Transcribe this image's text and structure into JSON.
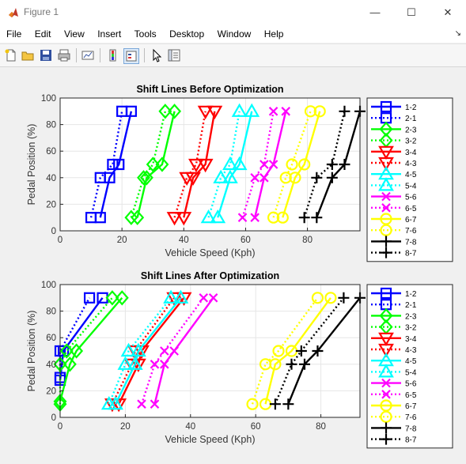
{
  "window": {
    "title": "Figure 1",
    "controls": [
      "—",
      "☐",
      "✕"
    ]
  },
  "menu": {
    "items": [
      "File",
      "Edit",
      "View",
      "Insert",
      "Tools",
      "Desktop",
      "Window",
      "Help"
    ],
    "dock_arrow": "↘"
  },
  "toolbar": {
    "buttons": [
      "new-figure",
      "open-file",
      "save",
      "print",
      "link-plot",
      "colorbar",
      "legend",
      "pointer",
      "property-inspector"
    ]
  },
  "chart_data": [
    {
      "type": "line",
      "title": "Shift Lines Before Optimization",
      "xlabel": "Vehicle Speed (Kph)",
      "ylabel": "Pedal Position (%)",
      "xlim": [
        0,
        97
      ],
      "ylim": [
        0,
        100
      ],
      "xticks": [
        0,
        20,
        40,
        60,
        80
      ],
      "yticks": [
        0,
        20,
        40,
        60,
        80,
        100
      ],
      "grid": true,
      "legend_position": "outside-right",
      "series": [
        {
          "name": "1-2",
          "color": "#0000ff",
          "style": "solid",
          "marker": "square",
          "x": [
            13,
            16,
            19,
            23
          ],
          "y": [
            10,
            40,
            50,
            90
          ]
        },
        {
          "name": "2-1",
          "color": "#0000ff",
          "style": "dotted",
          "marker": "square",
          "x": [
            10,
            13,
            17,
            20
          ],
          "y": [
            10,
            40,
            50,
            90
          ]
        },
        {
          "name": "2-3",
          "color": "#00ff00",
          "style": "solid",
          "marker": "diamond",
          "x": [
            25,
            28,
            33,
            37
          ],
          "y": [
            10,
            40,
            50,
            90
          ]
        },
        {
          "name": "3-2",
          "color": "#00ff00",
          "style": "dotted",
          "marker": "diamond",
          "x": [
            23,
            27,
            30,
            34
          ],
          "y": [
            10,
            40,
            50,
            90
          ]
        },
        {
          "name": "3-4",
          "color": "#ff0000",
          "style": "solid",
          "marker": "triangle-down",
          "x": [
            40,
            43,
            47,
            50
          ],
          "y": [
            10,
            40,
            50,
            90
          ]
        },
        {
          "name": "4-3",
          "color": "#ff0000",
          "style": "dotted",
          "marker": "triangle-down",
          "x": [
            37,
            41,
            44,
            47
          ],
          "y": [
            10,
            40,
            50,
            90
          ]
        },
        {
          "name": "4-5",
          "color": "#00ffff",
          "style": "solid",
          "marker": "triangle-up",
          "x": [
            51,
            55,
            58,
            62
          ],
          "y": [
            10,
            40,
            50,
            90
          ]
        },
        {
          "name": "5-4",
          "color": "#00ffff",
          "style": "dotted",
          "marker": "triangle-up",
          "x": [
            48,
            52,
            55,
            58
          ],
          "y": [
            10,
            40,
            50,
            90
          ]
        },
        {
          "name": "5-6",
          "color": "#ff00ff",
          "style": "solid",
          "marker": "x",
          "x": [
            63,
            66,
            69,
            73
          ],
          "y": [
            10,
            40,
            50,
            90
          ]
        },
        {
          "name": "6-5",
          "color": "#ff00ff",
          "style": "dotted",
          "marker": "x",
          "x": [
            59,
            63,
            66,
            69
          ],
          "y": [
            10,
            40,
            50,
            90
          ]
        },
        {
          "name": "6-7",
          "color": "#ffff00",
          "style": "solid",
          "marker": "circle",
          "x": [
            72,
            76,
            79,
            84
          ],
          "y": [
            10,
            40,
            50,
            90
          ]
        },
        {
          "name": "7-6",
          "color": "#ffff00",
          "style": "dotted",
          "marker": "circle",
          "x": [
            69,
            73,
            75,
            81
          ],
          "y": [
            10,
            40,
            50,
            90
          ]
        },
        {
          "name": "7-8",
          "color": "#000000",
          "style": "solid",
          "marker": "plus",
          "x": [
            83,
            88,
            92,
            97
          ],
          "y": [
            10,
            40,
            50,
            90
          ]
        },
        {
          "name": "8-7",
          "color": "#000000",
          "style": "dotted",
          "marker": "plus",
          "x": [
            79,
            83,
            88,
            92
          ],
          "y": [
            10,
            40,
            50,
            90
          ]
        }
      ]
    },
    {
      "type": "line",
      "title": "Shift Lines After Optimization",
      "xlabel": "Vehicle Speed (Kph)",
      "ylabel": "Pedal Position (%)",
      "xlim": [
        0,
        92
      ],
      "ylim": [
        0,
        100
      ],
      "xticks": [
        0,
        20,
        40,
        60,
        80
      ],
      "yticks": [
        0,
        20,
        40,
        60,
        80,
        100
      ],
      "grid": true,
      "legend_position": "outside-right",
      "series": [
        {
          "name": "1-2",
          "color": "#0000ff",
          "style": "solid",
          "marker": "square",
          "x": [
            0,
            1,
            13
          ],
          "y": [
            28,
            50,
            90
          ]
        },
        {
          "name": "2-1",
          "color": "#0000ff",
          "style": "dotted",
          "marker": "square",
          "x": [
            0,
            0,
            9
          ],
          "y": [
            30,
            50,
            90
          ]
        },
        {
          "name": "2-3",
          "color": "#00ff00",
          "style": "solid",
          "marker": "diamond",
          "x": [
            0,
            3,
            5,
            19
          ],
          "y": [
            12,
            40,
            50,
            90
          ]
        },
        {
          "name": "3-2",
          "color": "#00ff00",
          "style": "dotted",
          "marker": "diamond",
          "x": [
            0,
            0,
            2,
            16
          ],
          "y": [
            10,
            40,
            50,
            90
          ]
        },
        {
          "name": "3-4",
          "color": "#ff0000",
          "style": "solid",
          "marker": "triangle-down",
          "x": [
            18,
            24,
            25,
            38
          ],
          "y": [
            10,
            40,
            50,
            90
          ]
        },
        {
          "name": "4-3",
          "color": "#ff0000",
          "style": "dotted",
          "marker": "triangle-down",
          "x": [
            16,
            22,
            23,
            35
          ],
          "y": [
            10,
            40,
            50,
            90
          ]
        },
        {
          "name": "4-5",
          "color": "#00ffff",
          "style": "solid",
          "marker": "triangle-up",
          "x": [
            17,
            23,
            24,
            37
          ],
          "y": [
            10,
            40,
            50,
            90
          ]
        },
        {
          "name": "5-4",
          "color": "#00ffff",
          "style": "dotted",
          "marker": "triangle-up",
          "x": [
            15,
            20,
            21,
            34
          ],
          "y": [
            10,
            40,
            50,
            90
          ]
        },
        {
          "name": "5-6",
          "color": "#ff00ff",
          "style": "solid",
          "marker": "x",
          "x": [
            29,
            32,
            35,
            47
          ],
          "y": [
            10,
            40,
            50,
            90
          ]
        },
        {
          "name": "6-5",
          "color": "#ff00ff",
          "style": "dotted",
          "marker": "x",
          "x": [
            25,
            29,
            32,
            44
          ],
          "y": [
            10,
            40,
            50,
            90
          ]
        },
        {
          "name": "6-7",
          "color": "#ffff00",
          "style": "solid",
          "marker": "circle",
          "x": [
            63,
            66,
            71,
            83
          ],
          "y": [
            10,
            40,
            50,
            90
          ]
        },
        {
          "name": "7-6",
          "color": "#ffff00",
          "style": "dotted",
          "marker": "circle",
          "x": [
            59,
            63,
            67,
            79
          ],
          "y": [
            10,
            40,
            50,
            90
          ]
        },
        {
          "name": "7-8",
          "color": "#000000",
          "style": "solid",
          "marker": "plus",
          "x": [
            70,
            75,
            79,
            92
          ],
          "y": [
            10,
            40,
            50,
            90
          ]
        },
        {
          "name": "8-7",
          "color": "#000000",
          "style": "dotted",
          "marker": "plus",
          "x": [
            66,
            71,
            74,
            87
          ],
          "y": [
            10,
            40,
            50,
            90
          ]
        }
      ]
    }
  ]
}
